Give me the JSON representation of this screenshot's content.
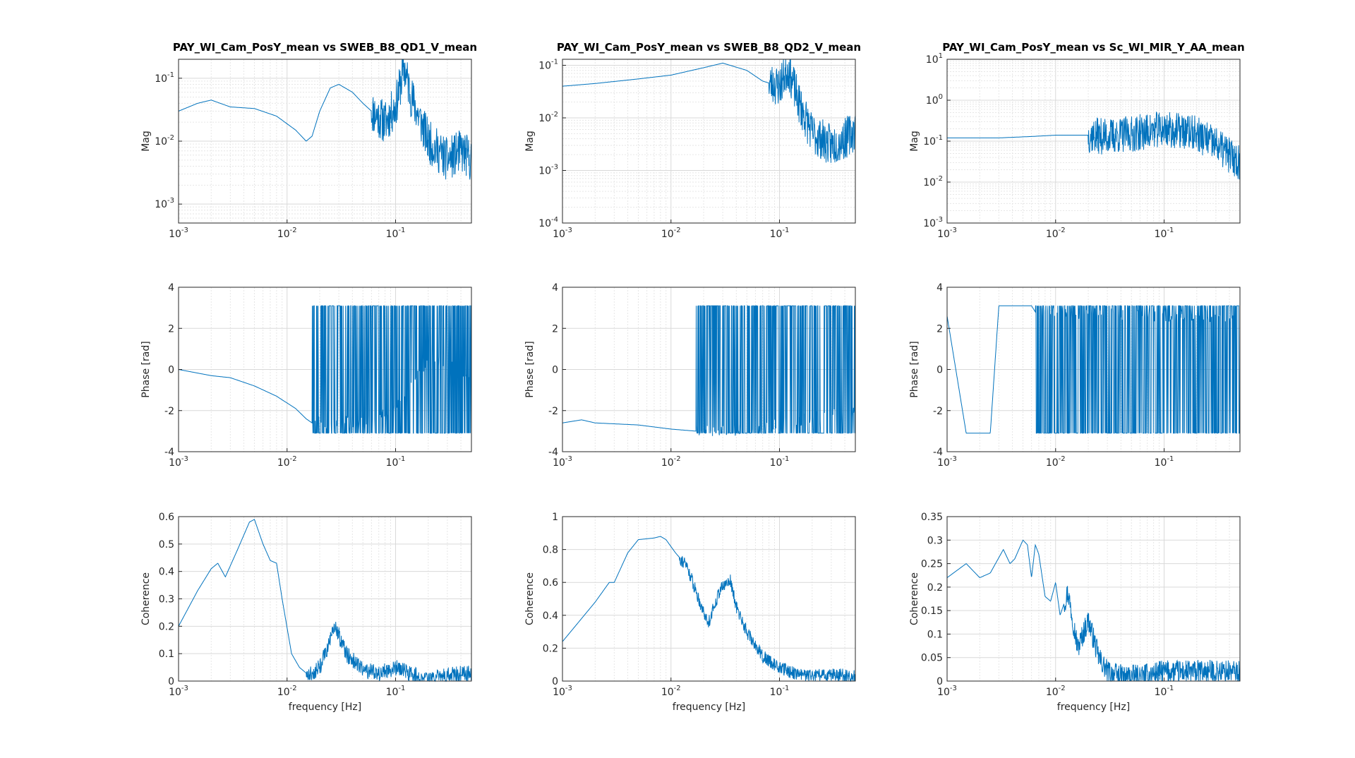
{
  "figure": {
    "line_color": "#0072bd",
    "grid_color": "#d9d9d9",
    "minor_grid_color": "#e6e6e6",
    "axis_color": "#262626",
    "xlabel": "frequency [Hz]"
  },
  "chart_data": [
    {
      "type": "line",
      "column": 0,
      "row": 0,
      "title": "PAY_WI_Cam_PosY_mean vs SWEB_B8_QD1_V_mean",
      "xlabel": "",
      "ylabel": "Mag",
      "xscale": "log",
      "yscale": "log",
      "xlim": [
        0.001,
        0.5
      ],
      "ylim": [
        0.0005,
        0.2
      ],
      "xticks": [
        {
          "v": 0.001,
          "label": "10^-3"
        },
        {
          "v": 0.01,
          "label": "10^-2"
        },
        {
          "v": 0.1,
          "label": "10^-1"
        }
      ],
      "yticks": [
        {
          "v": 0.001,
          "label": "10^-3"
        },
        {
          "v": 0.01,
          "label": "10^-2"
        },
        {
          "v": 0.1,
          "label": "10^-1"
        }
      ],
      "grid": true,
      "noise_from": 0.06,
      "noise_amp": 0.35,
      "seed": 11,
      "x": [
        0.001,
        0.0015,
        0.002,
        0.003,
        0.005,
        0.008,
        0.012,
        0.015,
        0.017,
        0.02,
        0.025,
        0.03,
        0.04,
        0.05,
        0.06,
        0.08,
        0.1,
        0.12,
        0.14,
        0.2,
        0.3,
        0.4,
        0.5
      ],
      "y": [
        0.03,
        0.04,
        0.045,
        0.035,
        0.033,
        0.025,
        0.015,
        0.01,
        0.012,
        0.03,
        0.07,
        0.08,
        0.06,
        0.04,
        0.03,
        0.02,
        0.035,
        0.15,
        0.05,
        0.01,
        0.005,
        0.007,
        0.005
      ]
    },
    {
      "type": "line",
      "column": 1,
      "row": 0,
      "title": "PAY_WI_Cam_PosY_mean vs SWEB_B8_QD2_V_mean",
      "xlabel": "",
      "ylabel": "Mag",
      "xscale": "log",
      "yscale": "log",
      "xlim": [
        0.001,
        0.5
      ],
      "ylim": [
        0.0001,
        0.13
      ],
      "xticks": [
        {
          "v": 0.001,
          "label": "10^-3"
        },
        {
          "v": 0.01,
          "label": "10^-2"
        },
        {
          "v": 0.1,
          "label": "10^-1"
        }
      ],
      "yticks": [
        {
          "v": 0.0001,
          "label": "10^-4"
        },
        {
          "v": 0.001,
          "label": "10^-3"
        },
        {
          "v": 0.01,
          "label": "10^-2"
        },
        {
          "v": 0.1,
          "label": "10^-1"
        }
      ],
      "grid": true,
      "noise_from": 0.08,
      "noise_amp": 0.4,
      "seed": 23,
      "x": [
        0.001,
        0.002,
        0.005,
        0.01,
        0.02,
        0.03,
        0.05,
        0.07,
        0.1,
        0.12,
        0.15,
        0.2,
        0.3,
        0.4,
        0.5
      ],
      "y": [
        0.04,
        0.045,
        0.055,
        0.065,
        0.09,
        0.11,
        0.08,
        0.05,
        0.04,
        0.09,
        0.02,
        0.005,
        0.003,
        0.004,
        0.006
      ]
    },
    {
      "type": "line",
      "column": 2,
      "row": 0,
      "title": "PAY_WI_Cam_PosY_mean vs Sc_WI_MIR_Y_AA_mean",
      "xlabel": "",
      "ylabel": "Mag",
      "xscale": "log",
      "yscale": "log",
      "xlim": [
        0.001,
        0.5
      ],
      "ylim": [
        0.001,
        10
      ],
      "xticks": [
        {
          "v": 0.001,
          "label": "10^-3"
        },
        {
          "v": 0.01,
          "label": "10^-2"
        },
        {
          "v": 0.1,
          "label": "10^-1"
        }
      ],
      "yticks": [
        {
          "v": 0.001,
          "label": "10^-3"
        },
        {
          "v": 0.01,
          "label": "10^-2"
        },
        {
          "v": 0.1,
          "label": "10^-1"
        },
        {
          "v": 1,
          "label": "10^0"
        },
        {
          "v": 10,
          "label": "10^1"
        }
      ],
      "grid": true,
      "noise_from": 0.02,
      "noise_amp": 0.45,
      "seed": 37,
      "x": [
        0.001,
        0.003,
        0.006,
        0.01,
        0.02,
        0.03,
        0.05,
        0.1,
        0.2,
        0.3,
        0.5
      ],
      "y": [
        0.12,
        0.12,
        0.13,
        0.14,
        0.14,
        0.13,
        0.15,
        0.2,
        0.15,
        0.08,
        0.03
      ]
    },
    {
      "type": "line",
      "column": 0,
      "row": 1,
      "title": "",
      "xlabel": "",
      "ylabel": "Phase [rad]",
      "xscale": "log",
      "yscale": "linear",
      "xlim": [
        0.001,
        0.5
      ],
      "ylim": [
        -4,
        4
      ],
      "xticks": [
        {
          "v": 0.001,
          "label": "10^-3"
        },
        {
          "v": 0.01,
          "label": "10^-2"
        },
        {
          "v": 0.1,
          "label": "10^-1"
        }
      ],
      "yticks": [
        {
          "v": -4,
          "label": "-4"
        },
        {
          "v": -2,
          "label": "-2"
        },
        {
          "v": 0,
          "label": "0"
        },
        {
          "v": 2,
          "label": "2"
        },
        {
          "v": 4,
          "label": "4"
        }
      ],
      "grid": true,
      "wrap_from": 0.017,
      "wrap_level": 3.1,
      "seed": 51,
      "x": [
        0.001,
        0.002,
        0.003,
        0.005,
        0.008,
        0.012,
        0.015,
        0.017,
        0.05,
        0.09,
        0.11,
        0.15,
        0.2,
        0.3,
        0.5
      ],
      "y": [
        0.0,
        -0.3,
        -0.4,
        -0.8,
        -1.3,
        -1.9,
        -2.4,
        -2.6,
        -2.5,
        -2.0,
        -1.5,
        -0.5,
        0.5,
        0.2,
        -0.3
      ]
    },
    {
      "type": "line",
      "column": 1,
      "row": 1,
      "title": "",
      "xlabel": "",
      "ylabel": "Phase [rad]",
      "xscale": "log",
      "yscale": "linear",
      "xlim": [
        0.001,
        0.5
      ],
      "ylim": [
        -4,
        4
      ],
      "xticks": [
        {
          "v": 0.001,
          "label": "10^-3"
        },
        {
          "v": 0.01,
          "label": "10^-2"
        },
        {
          "v": 0.1,
          "label": "10^-1"
        }
      ],
      "yticks": [
        {
          "v": -4,
          "label": "-4"
        },
        {
          "v": -2,
          "label": "-2"
        },
        {
          "v": 0,
          "label": "0"
        },
        {
          "v": 2,
          "label": "2"
        },
        {
          "v": 4,
          "label": "4"
        }
      ],
      "grid": true,
      "wrap_from": 0.017,
      "wrap_level": 3.1,
      "seed": 63,
      "x": [
        0.001,
        0.0015,
        0.002,
        0.005,
        0.01,
        0.017,
        0.05,
        0.08,
        0.1,
        0.5
      ],
      "y": [
        -2.6,
        -2.45,
        -2.6,
        -2.7,
        -2.9,
        -3.0,
        -2.9,
        -2.8,
        -2.6,
        -2.0
      ]
    },
    {
      "type": "line",
      "column": 2,
      "row": 1,
      "title": "",
      "xlabel": "",
      "ylabel": "Phase [rad]",
      "xscale": "log",
      "yscale": "linear",
      "xlim": [
        0.001,
        0.5
      ],
      "ylim": [
        -4,
        4
      ],
      "xticks": [
        {
          "v": 0.001,
          "label": "10^-3"
        },
        {
          "v": 0.01,
          "label": "10^-2"
        },
        {
          "v": 0.1,
          "label": "10^-1"
        }
      ],
      "yticks": [
        {
          "v": -4,
          "label": "-4"
        },
        {
          "v": -2,
          "label": "-2"
        },
        {
          "v": 0,
          "label": "0"
        },
        {
          "v": 2,
          "label": "2"
        },
        {
          "v": 4,
          "label": "4"
        }
      ],
      "grid": true,
      "wrap_from": 0.0065,
      "wrap_level": 3.1,
      "seed": 77,
      "x": [
        0.001,
        0.0015,
        0.0025,
        0.003,
        0.0045,
        0.006,
        0.0065,
        0.02,
        0.5
      ],
      "y": [
        2.6,
        -3.1,
        -3.1,
        3.1,
        3.1,
        3.1,
        2.8,
        2.7,
        2.5
      ]
    },
    {
      "type": "line",
      "column": 0,
      "row": 2,
      "title": "",
      "xlabel": "frequency [Hz]",
      "ylabel": "Coherence",
      "xscale": "log",
      "yscale": "linear",
      "xlim": [
        0.001,
        0.5
      ],
      "ylim": [
        0,
        0.6
      ],
      "xticks": [
        {
          "v": 0.001,
          "label": "10^-3"
        },
        {
          "v": 0.01,
          "label": "10^-2"
        },
        {
          "v": 0.1,
          "label": "10^-1"
        }
      ],
      "yticks": [
        {
          "v": 0,
          "label": "0"
        },
        {
          "v": 0.1,
          "label": "0.1"
        },
        {
          "v": 0.2,
          "label": "0.2"
        },
        {
          "v": 0.3,
          "label": "0.3"
        },
        {
          "v": 0.4,
          "label": "0.4"
        },
        {
          "v": 0.5,
          "label": "0.5"
        },
        {
          "v": 0.6,
          "label": "0.6"
        }
      ],
      "grid": true,
      "noise_from": 0.015,
      "noise_amp": 0.03,
      "seed": 81,
      "x": [
        0.001,
        0.0015,
        0.002,
        0.0023,
        0.0027,
        0.0035,
        0.0045,
        0.005,
        0.006,
        0.007,
        0.008,
        0.009,
        0.011,
        0.013,
        0.016,
        0.02,
        0.028,
        0.035,
        0.05,
        0.07,
        0.1,
        0.15,
        0.2,
        0.3,
        0.5
      ],
      "y": [
        0.2,
        0.33,
        0.41,
        0.43,
        0.38,
        0.48,
        0.58,
        0.59,
        0.5,
        0.44,
        0.43,
        0.3,
        0.1,
        0.05,
        0.02,
        0.05,
        0.2,
        0.1,
        0.04,
        0.03,
        0.05,
        0.02,
        0.01,
        0.02,
        0.03
      ]
    },
    {
      "type": "line",
      "column": 1,
      "row": 2,
      "title": "",
      "xlabel": "frequency [Hz]",
      "ylabel": "Coherence",
      "xscale": "log",
      "yscale": "linear",
      "xlim": [
        0.001,
        0.5
      ],
      "ylim": [
        0,
        1
      ],
      "xticks": [
        {
          "v": 0.001,
          "label": "10^-3"
        },
        {
          "v": 0.01,
          "label": "10^-2"
        },
        {
          "v": 0.1,
          "label": "10^-1"
        }
      ],
      "yticks": [
        {
          "v": 0,
          "label": "0"
        },
        {
          "v": 0.2,
          "label": "0.2"
        },
        {
          "v": 0.4,
          "label": "0.4"
        },
        {
          "v": 0.6,
          "label": "0.6"
        },
        {
          "v": 0.8,
          "label": "0.8"
        },
        {
          "v": 1,
          "label": "1"
        }
      ],
      "grid": true,
      "noise_from": 0.012,
      "noise_amp": 0.04,
      "seed": 91,
      "x": [
        0.001,
        0.002,
        0.0027,
        0.003,
        0.004,
        0.005,
        0.007,
        0.008,
        0.009,
        0.011,
        0.014,
        0.018,
        0.022,
        0.028,
        0.035,
        0.04,
        0.05,
        0.07,
        0.1,
        0.15,
        0.2,
        0.3,
        0.5
      ],
      "y": [
        0.24,
        0.48,
        0.6,
        0.6,
        0.78,
        0.86,
        0.87,
        0.88,
        0.86,
        0.78,
        0.7,
        0.5,
        0.35,
        0.55,
        0.62,
        0.45,
        0.3,
        0.15,
        0.08,
        0.04,
        0.03,
        0.04,
        0.03
      ]
    },
    {
      "type": "line",
      "column": 2,
      "row": 2,
      "title": "",
      "xlabel": "frequency [Hz]",
      "ylabel": "Coherence",
      "xscale": "log",
      "yscale": "linear",
      "xlim": [
        0.001,
        0.5
      ],
      "ylim": [
        0,
        0.35
      ],
      "xticks": [
        {
          "v": 0.001,
          "label": "10^-3"
        },
        {
          "v": 0.01,
          "label": "10^-2"
        },
        {
          "v": 0.1,
          "label": "10^-1"
        }
      ],
      "yticks": [
        {
          "v": 0,
          "label": "0"
        },
        {
          "v": 0.05,
          "label": "0.05"
        },
        {
          "v": 0.1,
          "label": "0.1"
        },
        {
          "v": 0.15,
          "label": "0.15"
        },
        {
          "v": 0.2,
          "label": "0.2"
        },
        {
          "v": 0.25,
          "label": "0.25"
        },
        {
          "v": 0.3,
          "label": "0.3"
        },
        {
          "v": 0.35,
          "label": "0.35"
        }
      ],
      "grid": true,
      "noise_from": 0.012,
      "noise_amp": 0.025,
      "seed": 97,
      "x": [
        0.001,
        0.0015,
        0.002,
        0.0025,
        0.0033,
        0.0038,
        0.0042,
        0.005,
        0.0055,
        0.006,
        0.0065,
        0.007,
        0.008,
        0.009,
        0.01,
        0.011,
        0.013,
        0.016,
        0.02,
        0.025,
        0.03,
        0.04,
        0.06,
        0.1,
        0.2,
        0.3,
        0.5
      ],
      "y": [
        0.22,
        0.25,
        0.22,
        0.23,
        0.28,
        0.25,
        0.26,
        0.3,
        0.29,
        0.22,
        0.29,
        0.27,
        0.18,
        0.17,
        0.21,
        0.14,
        0.19,
        0.07,
        0.13,
        0.05,
        0.02,
        0.01,
        0.01,
        0.02,
        0.02,
        0.02,
        0.02
      ]
    }
  ]
}
